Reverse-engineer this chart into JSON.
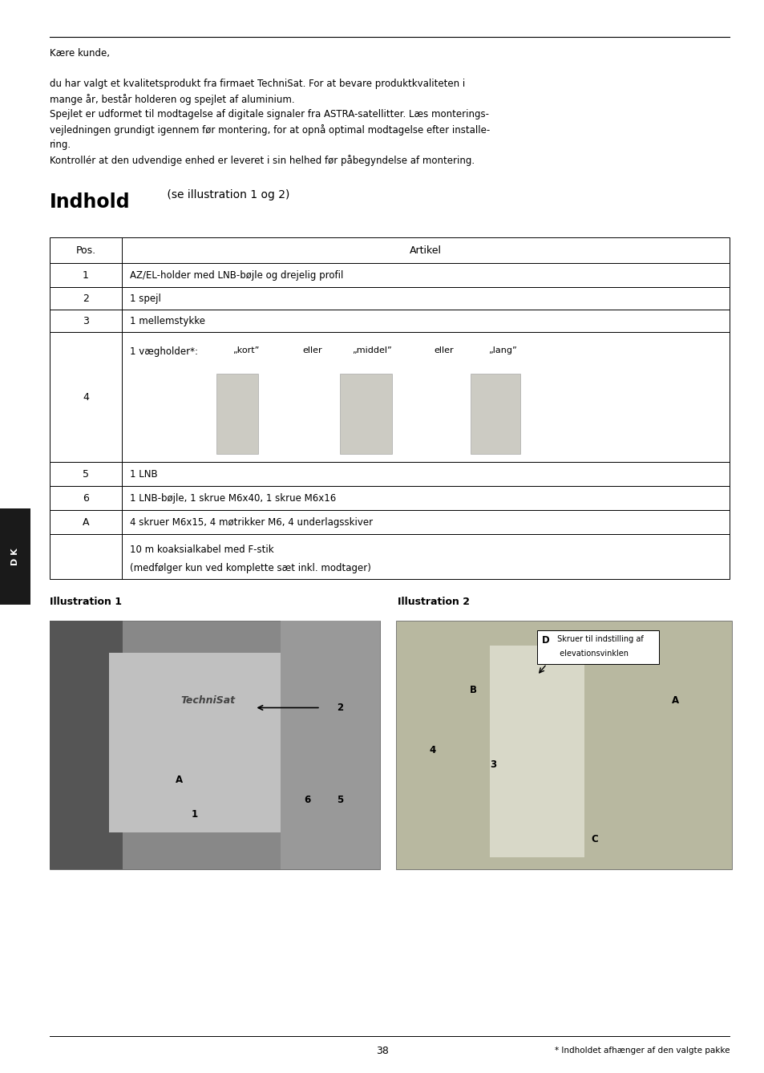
{
  "bg_color": "#ffffff",
  "page_width": 9.54,
  "page_height": 13.38,
  "intro_text": [
    "Kære kunde,",
    "",
    "du har valgt et kvalitetsprodukt fra firmaet TechniSat. For at bevare produktkvaliteten i",
    "mange år, består holderen og spejlet af aluminium.",
    "Spejlet er udformet til modtagelse af digitale signaler fra ASTRA-satellitter. Læs monterings-",
    "vejledningen grundigt igennem før montering, for at opnå optimal modtagelse efter installe-",
    "ring.",
    "Kontrollér at den udvendige enhed er leveret i sin helhed før påbegyndelse af montering."
  ],
  "section_title": "Indhold",
  "section_subtitle": " (se illustration 1 og 2)",
  "table_rows": [
    {
      "pos": "Pos.",
      "artikel": "Artikel",
      "header": true
    },
    {
      "pos": "1",
      "artikel": "AZ/EL-holder med LNB-bøjle og drejelig profil",
      "header": false
    },
    {
      "pos": "2",
      "artikel": "1 spejl",
      "header": false
    },
    {
      "pos": "3",
      "artikel": "1 mellemstykke",
      "header": false
    },
    {
      "pos": "4",
      "artikel": "1 vægholder*:",
      "header": false,
      "image_row": true
    },
    {
      "pos": "5",
      "artikel": "1 LNB",
      "header": false
    },
    {
      "pos": "6",
      "artikel": "1 LNB-bøjle, 1 skrue M6x40, 1 skrue M6x16",
      "header": false
    },
    {
      "pos": "A",
      "artikel": "4 skruer M6x15, 4 møtrikker M6, 4 underlagsskiver",
      "header": false
    },
    {
      "pos": "",
      "artikel": "10 m koaksialkabel med F-stik\n(medfølger kun ved komplette sæt inkl. modtager)",
      "header": false,
      "multiline": true
    }
  ],
  "ill1_label": "Illustration 1",
  "ill2_label": "Illustration 2",
  "page_number": "38",
  "footnote": "* Indholdet afhænger af den valgte pakke",
  "dk_label": "D K",
  "side_bar_color": "#1a1a1a",
  "image_bracket_text": [
    "„kort”",
    "eller",
    "„middel”",
    "eller",
    "„lang”"
  ]
}
